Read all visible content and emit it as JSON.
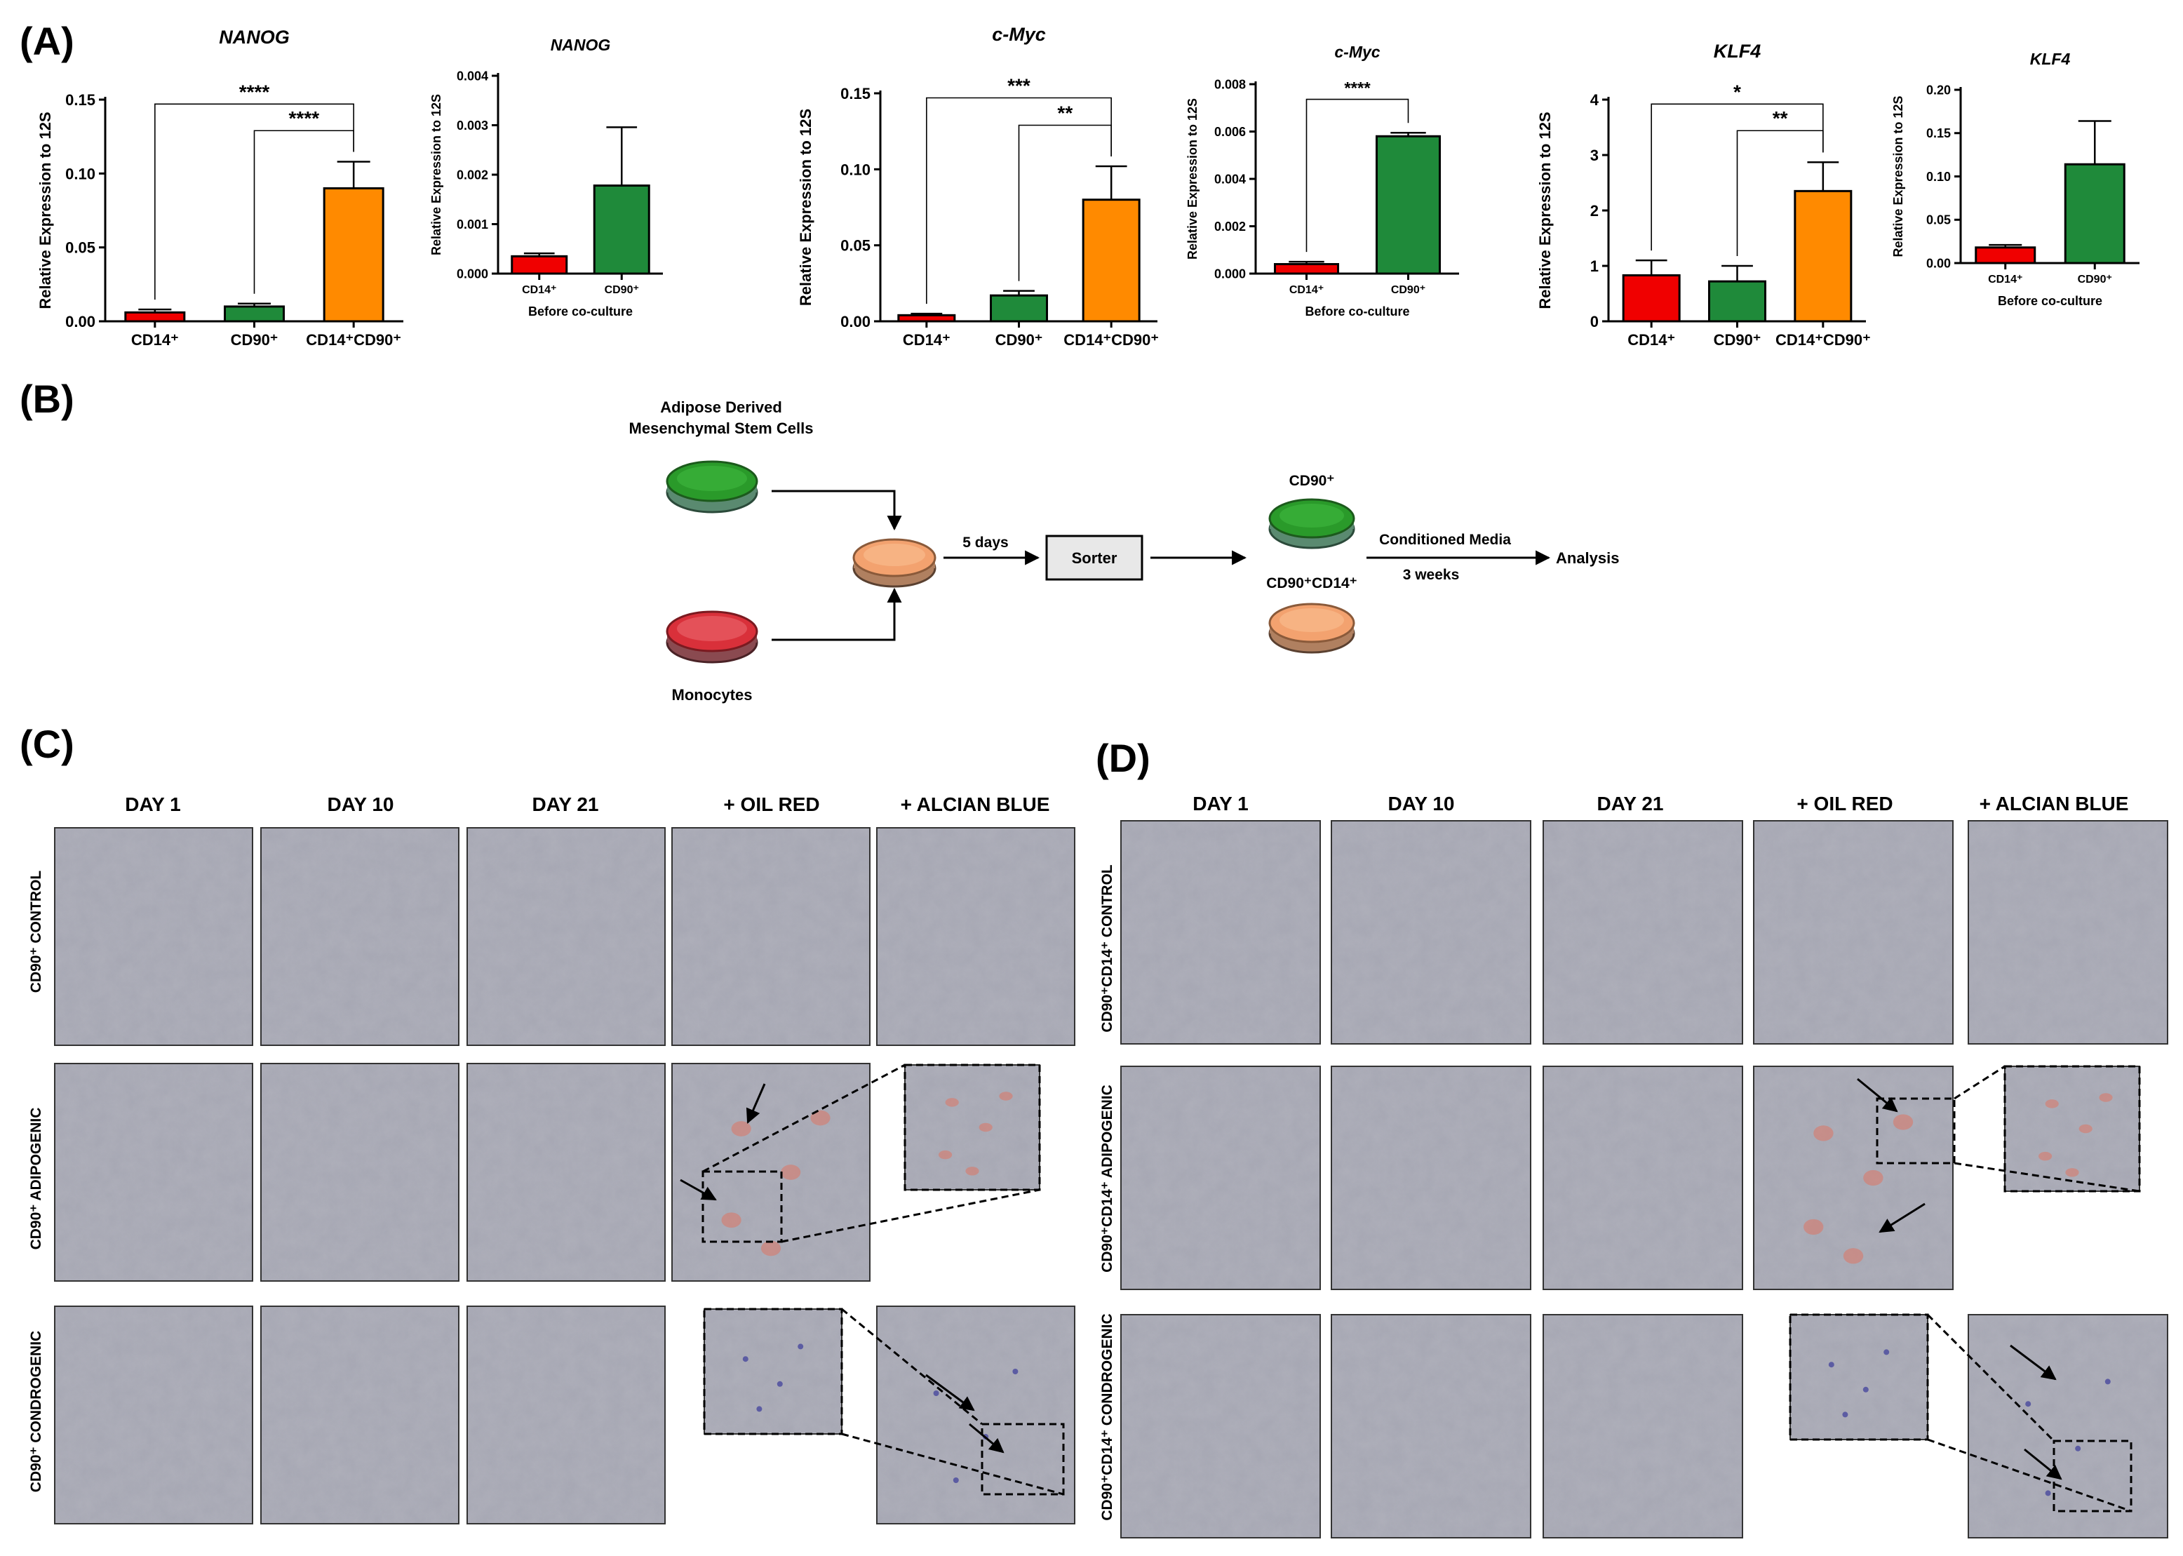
{
  "panels": {
    "a": "(A)",
    "b": "(B)",
    "c": "(C)",
    "d": "(D)"
  },
  "chart_data": [
    {
      "id": "nanog-main",
      "type": "bar",
      "title": "NANOG",
      "ylabel": "Relative Expression to 12S",
      "ylim": [
        0,
        0.15
      ],
      "yticks": [
        0,
        0.05,
        0.1,
        0.15
      ],
      "tick_decimals": 2,
      "categories": [
        "CD14⁺",
        "CD90⁺",
        "CD14⁺CD90⁺"
      ],
      "values": [
        0.006,
        0.01,
        0.09
      ],
      "errors": [
        0.002,
        0.002,
        0.018
      ],
      "colors": [
        "#f00000",
        "#1f8a3a",
        "#ff8a00"
      ],
      "xlabel": "",
      "significance": [
        {
          "pair": [
            0,
            2
          ],
          "label": "****"
        },
        {
          "pair": [
            1,
            2
          ],
          "label": "****"
        }
      ]
    },
    {
      "id": "nanog-before",
      "type": "bar",
      "title": "NANOG",
      "ylabel": "Relative Expression to 12S",
      "ylim": [
        0,
        0.004
      ],
      "yticks": [
        0,
        0.001,
        0.002,
        0.003,
        0.004
      ],
      "tick_decimals": 3,
      "categories": [
        "CD14⁺",
        "CD90⁺"
      ],
      "values": [
        0.00035,
        0.00178
      ],
      "errors": [
        6e-05,
        0.00118
      ],
      "colors": [
        "#f00000",
        "#1f8a3a"
      ],
      "xlabel": "Before co-culture",
      "significance": []
    },
    {
      "id": "cmyc-main",
      "type": "bar",
      "title": "c-Myc",
      "ylabel": "Relative Expression to 12S",
      "ylim": [
        0,
        0.15
      ],
      "yticks": [
        0,
        0.05,
        0.1,
        0.15
      ],
      "tick_decimals": 2,
      "categories": [
        "CD14⁺",
        "CD90⁺",
        "CD14⁺CD90⁺"
      ],
      "values": [
        0.004,
        0.017,
        0.08
      ],
      "errors": [
        0.001,
        0.003,
        0.022
      ],
      "colors": [
        "#f00000",
        "#1f8a3a",
        "#ff8a00"
      ],
      "xlabel": "",
      "significance": [
        {
          "pair": [
            0,
            2
          ],
          "label": "***"
        },
        {
          "pair": [
            1,
            2
          ],
          "label": "**"
        }
      ]
    },
    {
      "id": "cmyc-before",
      "type": "bar",
      "title": "c-Myc",
      "ylabel": "Relative Expression to 12S",
      "ylim": [
        0,
        0.008
      ],
      "yticks": [
        0,
        0.002,
        0.004,
        0.006,
        0.008
      ],
      "tick_decimals": 3,
      "categories": [
        "CD14⁺",
        "CD90⁺"
      ],
      "values": [
        0.0004,
        0.0058
      ],
      "errors": [
        0.0001,
        0.00015
      ],
      "colors": [
        "#f00000",
        "#1f8a3a"
      ],
      "xlabel": "Before co-culture",
      "significance": [
        {
          "pair": [
            0,
            1
          ],
          "label": "****"
        }
      ]
    },
    {
      "id": "klf4-main",
      "type": "bar",
      "title": "KLF4",
      "ylabel": "Relative Expression to 12S",
      "ylim": [
        0,
        4
      ],
      "yticks": [
        0,
        1,
        2,
        3,
        4
      ],
      "tick_decimals": 0,
      "categories": [
        "CD14⁺",
        "CD90⁺",
        "CD14⁺CD90⁺"
      ],
      "values": [
        0.83,
        0.72,
        2.35
      ],
      "errors": [
        0.27,
        0.28,
        0.52
      ],
      "colors": [
        "#f00000",
        "#1f8a3a",
        "#ff8a00"
      ],
      "xlabel": "",
      "significance": [
        {
          "pair": [
            0,
            2
          ],
          "label": "*"
        },
        {
          "pair": [
            1,
            2
          ],
          "label": "**"
        }
      ]
    },
    {
      "id": "klf4-before",
      "type": "bar",
      "title": "KLF4",
      "ylabel": "Relative Expression to 12S",
      "ylim": [
        0,
        0.2
      ],
      "yticks": [
        0,
        0.05,
        0.1,
        0.15,
        0.2
      ],
      "tick_decimals": 2,
      "categories": [
        "CD14⁺",
        "CD90⁺"
      ],
      "values": [
        0.018,
        0.114
      ],
      "errors": [
        0.003,
        0.05
      ],
      "colors": [
        "#f00000",
        "#1f8a3a"
      ],
      "xlabel": "Before co-culture",
      "significance": []
    }
  ],
  "diagram": {
    "adsc_label_line1": "Adipose Derived",
    "adsc_label_line2": "Mesenchymal Stem Cells",
    "monocytes_label": "Monocytes",
    "days_label": "5 days",
    "sorter_label": "Sorter",
    "cd90_label": "CD90⁺",
    "cd90cd14_label": "CD90⁺CD14⁺",
    "conditioned_label": "Conditioned Media",
    "weeks_label": "3 weeks",
    "analysis_label": "Analysis",
    "colors": {
      "green": "#1e8a2e",
      "red": "#d9303a",
      "orange": "#f3a26f"
    }
  },
  "micro_c": {
    "columns": [
      "DAY 1",
      "DAY 10",
      "DAY 21",
      "+ OIL RED",
      "+ ALCIAN BLUE"
    ],
    "rows": [
      "CD90⁺ CONTROL",
      "CD90⁺ ADIPOGENIC",
      "CD90⁺ CONDROGENIC"
    ]
  },
  "micro_d": {
    "columns": [
      "DAY 1",
      "DAY 10",
      "DAY 21",
      "+ OIL RED",
      "+ ALCIAN BLUE"
    ],
    "rows": [
      "CD90⁺CD14⁺ CONTROL",
      "CD90⁺CD14⁺  ADIPOGENIC",
      "CD90⁺CD14⁺  CONDROGENIC"
    ]
  }
}
